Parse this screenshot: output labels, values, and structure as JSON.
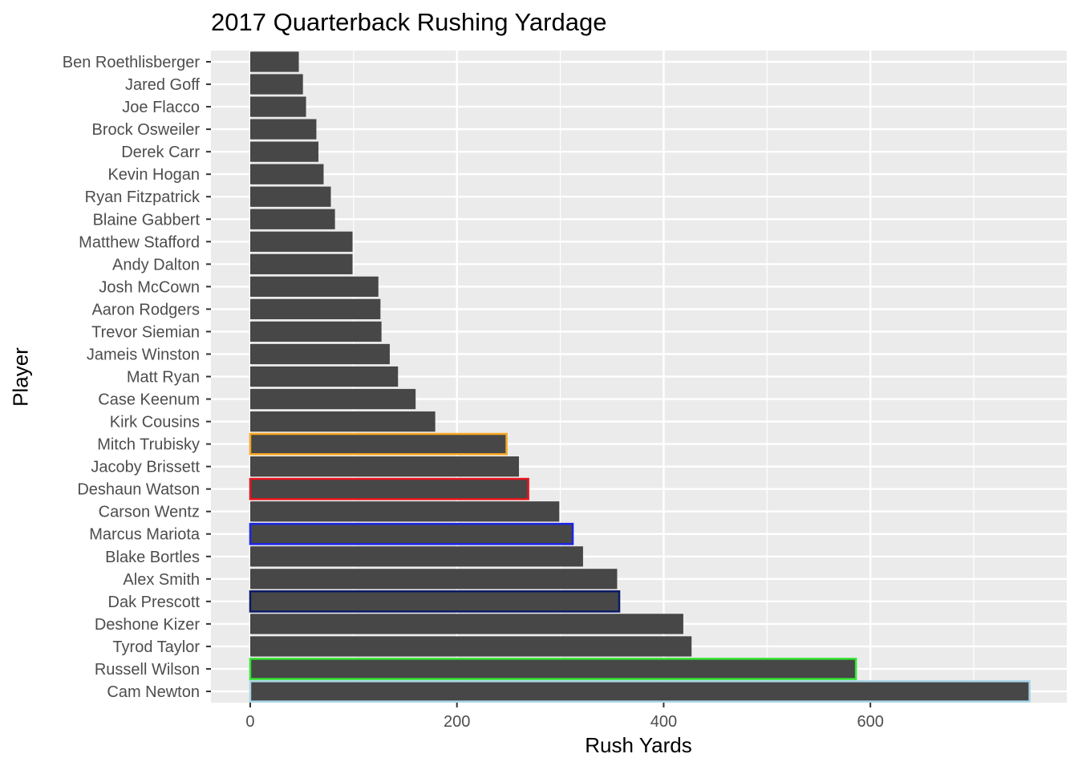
{
  "chart_data": {
    "type": "bar",
    "orientation": "horizontal",
    "title": "2017 Quarterback Rushing Yardage",
    "xlabel": "Rush Yards",
    "ylabel": "Player",
    "xlim": [
      -38,
      790
    ],
    "x_ticks": [
      0,
      200,
      400,
      600
    ],
    "grid": true,
    "background": "#ebebeb",
    "bar_color": "#474747",
    "categories": [
      "Ben Roethlisberger",
      "Jared Goff",
      "Joe Flacco",
      "Brock Osweiler",
      "Derek Carr",
      "Kevin Hogan",
      "Ryan Fitzpatrick",
      "Blaine Gabbert",
      "Matthew Stafford",
      "Andy Dalton",
      "Josh McCown",
      "Aaron Rodgers",
      "Trevor Siemian",
      "Jameis Winston",
      "Matt Ryan",
      "Case Keenum",
      "Kirk Cousins",
      "Mitch Trubisky",
      "Jacoby Brissett",
      "Deshaun Watson",
      "Carson Wentz",
      "Marcus Mariota",
      "Blake Bortles",
      "Alex Smith",
      "Dak Prescott",
      "Deshone Kizer",
      "Tyrod Taylor",
      "Russell Wilson",
      "Cam Newton"
    ],
    "values": [
      47,
      51,
      54,
      64,
      66,
      71,
      78,
      82,
      99,
      99,
      124,
      126,
      127,
      135,
      143,
      160,
      179,
      248,
      260,
      269,
      299,
      312,
      322,
      355,
      357,
      419,
      427,
      586,
      754
    ],
    "highlights": {
      "Mitch Trubisky": "#f5a623",
      "Deshaun Watson": "#e8141c",
      "Marcus Mariota": "#1a25e6",
      "Dak Prescott": "#0b1a66",
      "Russell Wilson": "#33e633",
      "Cam Newton": "#a8d4e6"
    }
  }
}
